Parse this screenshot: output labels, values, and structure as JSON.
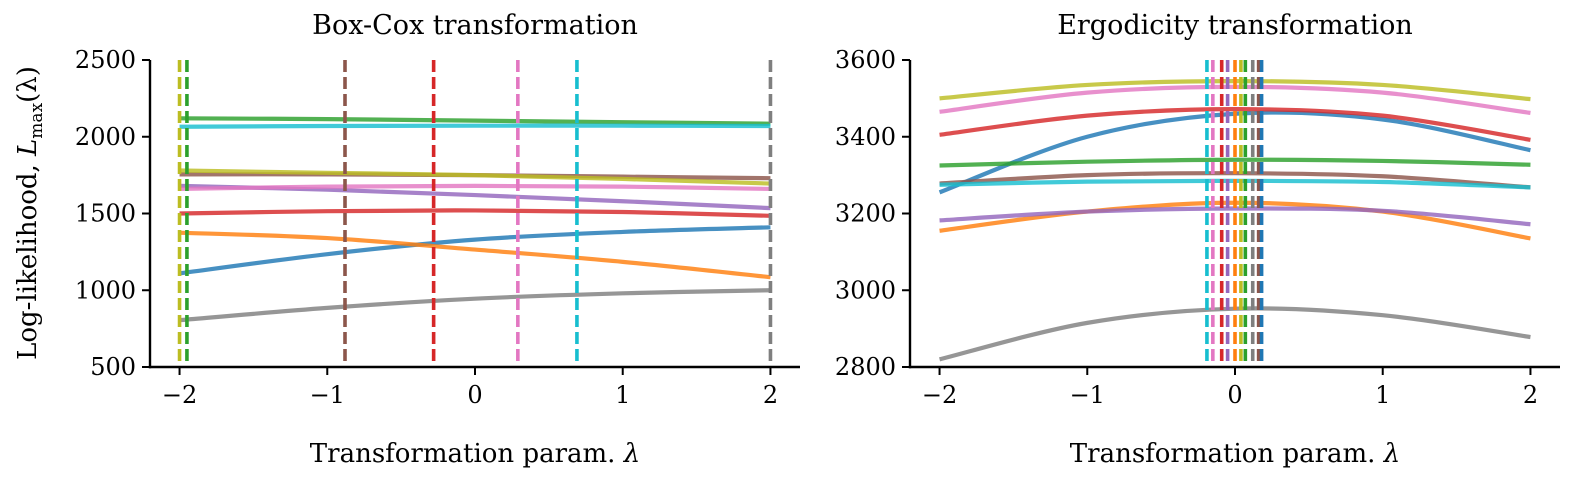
{
  "colors": {
    "blue": "#1f77b4",
    "orange": "#ff7f0e",
    "green": "#2ca02c",
    "red": "#d62728",
    "purple": "#9467bd",
    "brown": "#8c564b",
    "pink": "#e377c2",
    "gray": "#7f7f7f",
    "olive": "#bcbd22",
    "cyan": "#17becf"
  },
  "chart_data": [
    {
      "type": "line",
      "title": "Box-Cox transformation",
      "xlabel": "Transformation param.",
      "xlabel_symbol": "λ",
      "ylabel": "Log-likelihood,",
      "ylabel_symbol": "L",
      "ylabel_subscript": "max",
      "ylabel_arg": "(λ)",
      "xlim": [
        -2.2,
        2.2
      ],
      "ylim": [
        500,
        2500
      ],
      "xticks": [
        -2,
        -1,
        0,
        1,
        2
      ],
      "xtick_labels": [
        "−2",
        "−1",
        "0",
        "1",
        "2"
      ],
      "yticks": [
        500,
        1000,
        1500,
        2000,
        2500
      ],
      "ytick_labels": [
        "500",
        "1000",
        "1500",
        "2000",
        "2500"
      ],
      "series": [
        {
          "name": "blue",
          "color": "blue",
          "x": [
            -2,
            -1,
            0,
            1,
            2
          ],
          "y": [
            1110,
            1235,
            1330,
            1380,
            1410
          ],
          "optimum": 2
        },
        {
          "name": "orange",
          "color": "orange",
          "x": [
            -2,
            -1,
            0,
            1,
            2
          ],
          "y": [
            1375,
            1340,
            1265,
            1185,
            1085
          ],
          "optimum": -2
        },
        {
          "name": "green",
          "color": "green",
          "x": [
            -2,
            -1,
            0,
            1,
            2
          ],
          "y": [
            2120,
            2115,
            2105,
            2095,
            2085
          ],
          "optimum": -1.95
        },
        {
          "name": "red",
          "color": "red",
          "x": [
            -2,
            -1,
            0,
            1,
            2
          ],
          "y": [
            1500,
            1515,
            1520,
            1510,
            1485
          ],
          "optimum": -0.28
        },
        {
          "name": "purple",
          "color": "purple",
          "x": [
            -2,
            -1,
            0,
            1,
            2
          ],
          "y": [
            1680,
            1655,
            1620,
            1580,
            1535
          ],
          "optimum": -2
        },
        {
          "name": "brown",
          "color": "brown",
          "x": [
            -2,
            -1,
            0,
            1,
            2
          ],
          "y": [
            1755,
            1755,
            1750,
            1740,
            1730
          ],
          "optimum": -0.88
        },
        {
          "name": "pink",
          "color": "pink",
          "x": [
            -2,
            -1,
            0,
            1,
            2
          ],
          "y": [
            1660,
            1675,
            1680,
            1675,
            1660
          ],
          "optimum": 0.29
        },
        {
          "name": "gray",
          "color": "gray",
          "x": [
            -2,
            -1,
            0,
            1,
            2
          ],
          "y": [
            805,
            885,
            945,
            980,
            1000
          ],
          "optimum": 2
        },
        {
          "name": "olive",
          "color": "olive",
          "x": [
            -2,
            -1,
            0,
            1,
            2
          ],
          "y": [
            1780,
            1765,
            1750,
            1725,
            1695
          ],
          "optimum": -2.0
        },
        {
          "name": "cyan",
          "color": "cyan",
          "x": [
            -2,
            -1,
            0,
            1,
            2
          ],
          "y": [
            2065,
            2070,
            2072,
            2072,
            2070
          ],
          "optimum": 0.69
        }
      ],
      "vlines": [
        {
          "x": -2.0,
          "color": "olive"
        },
        {
          "x": -1.95,
          "color": "green"
        },
        {
          "x": -0.88,
          "color": "brown"
        },
        {
          "x": -0.28,
          "color": "red"
        },
        {
          "x": 0.29,
          "color": "pink"
        },
        {
          "x": 0.69,
          "color": "cyan"
        },
        {
          "x": 2.0,
          "color": "gray"
        }
      ]
    },
    {
      "type": "line",
      "title": "Ergodicity transformation",
      "xlabel": "Transformation param.",
      "xlabel_symbol": "λ",
      "xlim": [
        -2.2,
        2.2
      ],
      "ylim": [
        2800,
        3600
      ],
      "xticks": [
        -2,
        -1,
        0,
        1,
        2
      ],
      "xtick_labels": [
        "−2",
        "−1",
        "0",
        "1",
        "2"
      ],
      "yticks": [
        2800,
        3000,
        3200,
        3400,
        3600
      ],
      "ytick_labels": [
        "2800",
        "3000",
        "3200",
        "3400",
        "3600"
      ],
      "series": [
        {
          "name": "blue",
          "color": "blue",
          "x": [
            -2,
            -1,
            0,
            1,
            2
          ],
          "y": [
            3255,
            3400,
            3460,
            3445,
            3365
          ]
        },
        {
          "name": "orange",
          "color": "orange",
          "x": [
            -2,
            -1,
            0,
            1,
            2
          ],
          "y": [
            3155,
            3205,
            3228,
            3205,
            3135
          ]
        },
        {
          "name": "green",
          "color": "green",
          "x": [
            -2,
            -1,
            0,
            1,
            2
          ],
          "y": [
            3325,
            3335,
            3340,
            3337,
            3327
          ]
        },
        {
          "name": "red",
          "color": "red",
          "x": [
            -2,
            -1,
            0,
            1,
            2
          ],
          "y": [
            3405,
            3455,
            3472,
            3455,
            3392
          ]
        },
        {
          "name": "purple",
          "color": "purple",
          "x": [
            -2,
            -1,
            0,
            1,
            2
          ],
          "y": [
            3182,
            3205,
            3213,
            3207,
            3172
          ]
        },
        {
          "name": "brown",
          "color": "brown",
          "x": [
            -2,
            -1,
            0,
            1,
            2
          ],
          "y": [
            3278,
            3300,
            3305,
            3297,
            3268
          ]
        },
        {
          "name": "pink",
          "color": "pink",
          "x": [
            -2,
            -1,
            0,
            1,
            2
          ],
          "y": [
            3465,
            3515,
            3530,
            3515,
            3462
          ]
        },
        {
          "name": "gray",
          "color": "gray",
          "x": [
            -2,
            -1,
            0,
            1,
            2
          ],
          "y": [
            2820,
            2915,
            2952,
            2935,
            2878
          ]
        },
        {
          "name": "olive",
          "color": "olive",
          "x": [
            -2,
            -1,
            0,
            1,
            2
          ],
          "y": [
            3500,
            3535,
            3545,
            3535,
            3498
          ]
        },
        {
          "name": "cyan",
          "color": "cyan",
          "x": [
            -2,
            -1,
            0,
            1,
            2
          ],
          "y": [
            3275,
            3283,
            3285,
            3282,
            3268
          ]
        }
      ],
      "vlines": [
        {
          "x": -0.19,
          "color": "cyan"
        },
        {
          "x": -0.15,
          "color": "pink"
        },
        {
          "x": -0.09,
          "color": "red"
        },
        {
          "x": -0.05,
          "color": "purple"
        },
        {
          "x": 0.0,
          "color": "orange"
        },
        {
          "x": 0.04,
          "color": "olive"
        },
        {
          "x": 0.07,
          "color": "green"
        },
        {
          "x": 0.12,
          "color": "gray"
        },
        {
          "x": 0.16,
          "color": "brown"
        },
        {
          "x": 0.18,
          "color": "blue"
        }
      ]
    }
  ]
}
